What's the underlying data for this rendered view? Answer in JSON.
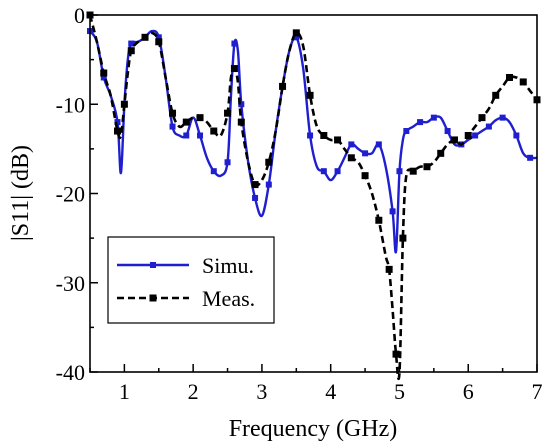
{
  "chart_data": {
    "type": "line",
    "xlabel": "Frequency (GHz)",
    "ylabel": "|S11| (dB)",
    "xlim": [
      0.5,
      7.0
    ],
    "ylim": [
      -40,
      0
    ],
    "xticks": [
      1,
      2,
      3,
      4,
      5,
      6,
      7
    ],
    "yticks": [
      0,
      -10,
      -20,
      -30,
      -40
    ],
    "grid": false,
    "legend_position": "bottom-left",
    "series": [
      {
        "name": "Simu.",
        "color": "#1f1fd0",
        "line_style": "solid",
        "marker": "square",
        "x": [
          0.5,
          0.6,
          0.7,
          0.8,
          0.9,
          0.95,
          1.0,
          1.05,
          1.1,
          1.2,
          1.3,
          1.4,
          1.5,
          1.6,
          1.7,
          1.8,
          1.9,
          2.0,
          2.1,
          2.2,
          2.3,
          2.4,
          2.5,
          2.55,
          2.6,
          2.65,
          2.7,
          2.8,
          2.9,
          3.0,
          3.1,
          3.2,
          3.3,
          3.4,
          3.5,
          3.6,
          3.7,
          3.8,
          3.9,
          4.0,
          4.1,
          4.2,
          4.3,
          4.4,
          4.5,
          4.6,
          4.7,
          4.8,
          4.9,
          4.95,
          5.0,
          5.05,
          5.1,
          5.2,
          5.3,
          5.4,
          5.5,
          5.6,
          5.7,
          5.8,
          5.9,
          6.0,
          6.1,
          6.2,
          6.3,
          6.4,
          6.5,
          6.6,
          6.7,
          6.8,
          6.9,
          7.0
        ],
        "y": [
          -1.8,
          -3.0,
          -7.0,
          -9.0,
          -12.0,
          -17.7,
          -10.0,
          -5.0,
          -3.2,
          -3.0,
          -2.5,
          -1.8,
          -2.5,
          -7.0,
          -12.5,
          -13.5,
          -13.5,
          -11.5,
          -13.5,
          -16.0,
          -17.5,
          -18.0,
          -16.5,
          -9.0,
          -3.2,
          -4.0,
          -10.0,
          -16.5,
          -20.5,
          -22.5,
          -19.0,
          -13.0,
          -8.0,
          -4.0,
          -2.5,
          -6.0,
          -13.5,
          -17.0,
          -17.5,
          -18.5,
          -17.5,
          -16.0,
          -14.5,
          -15.0,
          -15.5,
          -15.5,
          -14.5,
          -17.0,
          -22.0,
          -26.5,
          -17.5,
          -14.0,
          -13.0,
          -12.5,
          -12.0,
          -12.0,
          -11.5,
          -11.5,
          -13.0,
          -14.5,
          -14.5,
          -14.0,
          -13.5,
          -13.0,
          -12.5,
          -11.8,
          -11.5,
          -12.0,
          -13.5,
          -15.5,
          -16.0,
          -16.0
        ]
      },
      {
        "name": "Meas.",
        "color": "#000000",
        "line_style": "dashed",
        "marker": "square",
        "x": [
          0.5,
          0.6,
          0.7,
          0.8,
          0.9,
          0.95,
          1.0,
          1.05,
          1.1,
          1.2,
          1.3,
          1.4,
          1.5,
          1.6,
          1.7,
          1.8,
          1.9,
          2.0,
          2.1,
          2.2,
          2.3,
          2.4,
          2.5,
          2.55,
          2.6,
          2.65,
          2.7,
          2.8,
          2.9,
          3.0,
          3.1,
          3.2,
          3.3,
          3.4,
          3.5,
          3.6,
          3.7,
          3.8,
          3.9,
          4.0,
          4.1,
          4.2,
          4.3,
          4.4,
          4.5,
          4.6,
          4.7,
          4.8,
          4.85,
          4.9,
          4.95,
          5.0,
          5.05,
          5.1,
          5.2,
          5.3,
          5.4,
          5.5,
          5.6,
          5.7,
          5.8,
          5.9,
          6.0,
          6.1,
          6.2,
          6.3,
          6.4,
          6.5,
          6.6,
          6.7,
          6.8,
          6.9,
          7.0
        ],
        "y": [
          0.0,
          -3.0,
          -6.5,
          -9.0,
          -13.0,
          -13.5,
          -10.0,
          -6.5,
          -4.0,
          -3.0,
          -2.5,
          -2.0,
          -3.0,
          -7.0,
          -11.0,
          -12.5,
          -12.0,
          -11.5,
          -11.5,
          -12.0,
          -13.0,
          -13.5,
          -11.0,
          -7.0,
          -6.0,
          -7.5,
          -12.0,
          -16.5,
          -19.0,
          -18.5,
          -16.5,
          -13.0,
          -8.0,
          -4.0,
          -2.0,
          -3.5,
          -9.0,
          -12.5,
          -13.5,
          -14.0,
          -14.0,
          -15.0,
          -16.0,
          -16.5,
          -18.0,
          -20.0,
          -23.0,
          -27.0,
          -28.5,
          -33.0,
          -38.0,
          -40.0,
          -25.0,
          -18.0,
          -17.5,
          -17.0,
          -17.0,
          -16.5,
          -15.5,
          -14.5,
          -14.0,
          -14.5,
          -13.5,
          -12.5,
          -11.5,
          -10.5,
          -9.0,
          -8.0,
          -7.0,
          -7.0,
          -7.5,
          -8.5,
          -9.5
        ]
      }
    ]
  }
}
